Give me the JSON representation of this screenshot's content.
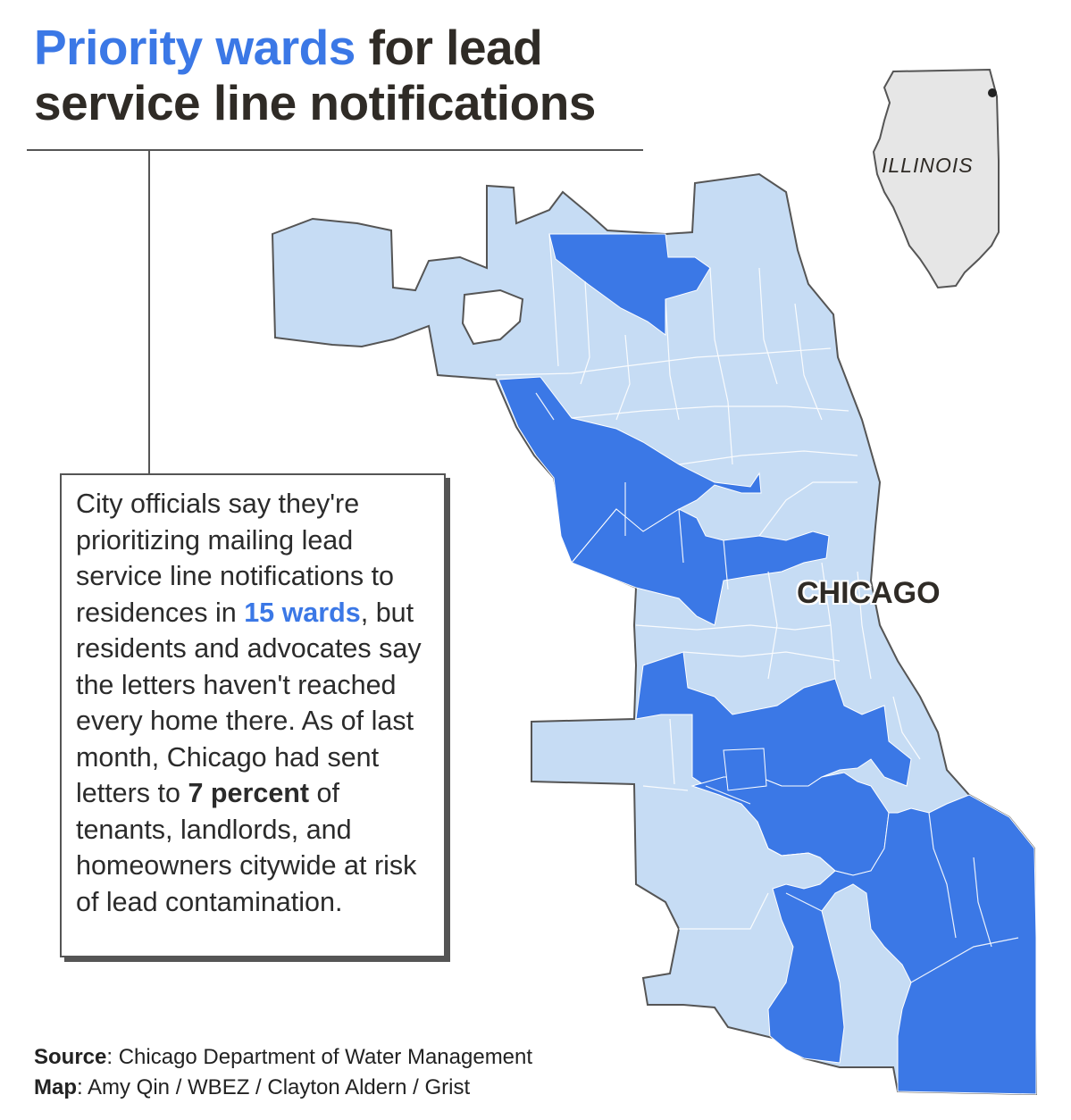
{
  "title": {
    "highlight": "Priority wards",
    "rest_line1": " for lead",
    "line2": "service line notifications"
  },
  "callout": {
    "text_before": "City officials say they're prioritizing mailing lead service line notifications to residences in ",
    "highlight_wards": "15 wards",
    "text_middle": ", but residents and advocates say the letters haven't reached every home there. As of last month, Chicago had sent letters to ",
    "bold_percent": "7 percent",
    "text_after": " of tenants, landlords, and homeowners citywide at risk of lead contamination."
  },
  "map": {
    "city_label": "CHICAGO",
    "inset_label": "ILLINOIS",
    "legend": {
      "priority_ward_color": "#3b78e6",
      "other_ward_color": "#c6dcf4",
      "border_color": "#555555"
    }
  },
  "credits": {
    "source_label": "Source",
    "source_text": ": Chicago Department of Water Management",
    "map_label": "Map",
    "map_text": ": Amy Qin / WBEZ / Clayton Aldern / Grist"
  }
}
